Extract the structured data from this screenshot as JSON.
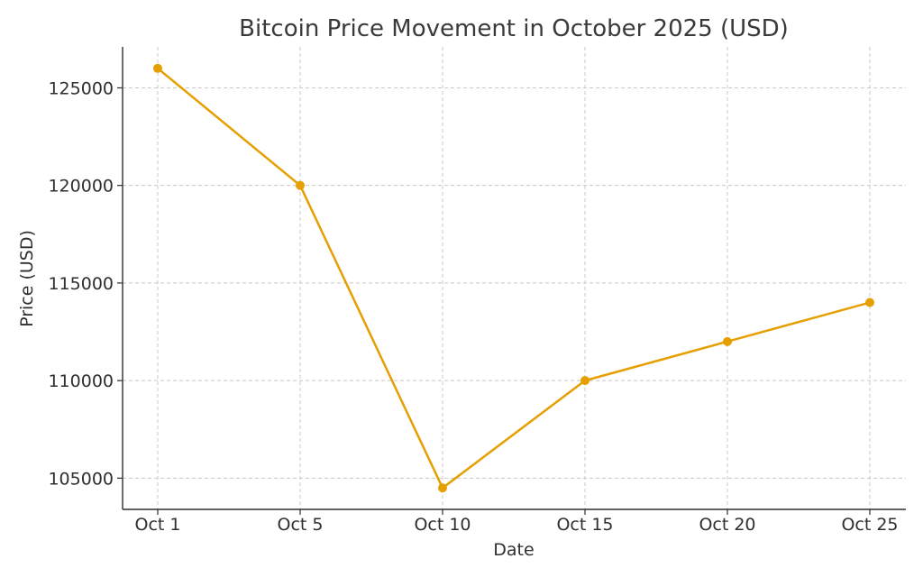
{
  "chart_data": {
    "type": "line",
    "title": "Bitcoin Price Movement in October 2025 (USD)",
    "xlabel": "Date",
    "ylabel": "Price (USD)",
    "categories": [
      "Oct 1",
      "Oct 5",
      "Oct 10",
      "Oct 15",
      "Oct 20",
      "Oct 25"
    ],
    "series": [
      {
        "values": [
          126000,
          120000,
          104500,
          110000,
          112000,
          114000
        ],
        "color": "#e69f00"
      }
    ],
    "yticks": [
      105000,
      110000,
      115000,
      120000,
      125000
    ],
    "ylim": [
      103400,
      127100
    ],
    "grid": true,
    "marker": "circle"
  }
}
